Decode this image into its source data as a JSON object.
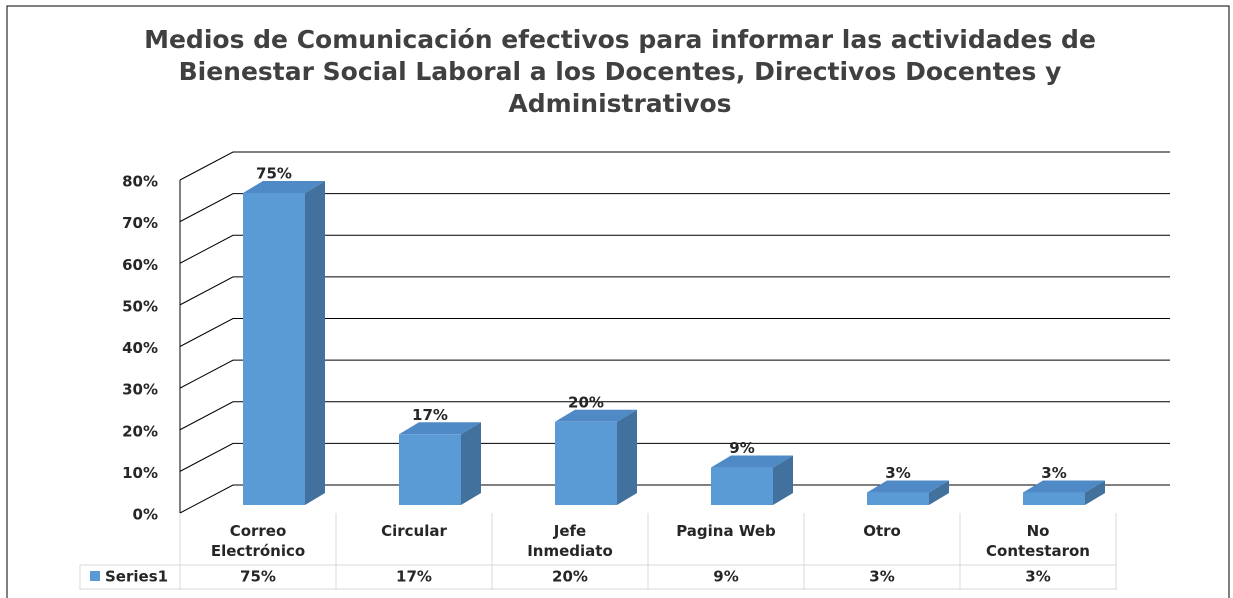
{
  "chart_data": {
    "type": "bar3d",
    "title": "Medios de Comunicación efectivos para informar las actividades de Bienestar Social Laboral a los Docentes, Directivos Docentes y Administrativos",
    "categories": [
      "Correo Electrónico",
      "Circular",
      "Jefe Inmediato",
      "Pagina Web",
      "Otro",
      "No Contestaron"
    ],
    "series": [
      {
        "name": "Series1",
        "color": "#5b9bd5",
        "values": [
          75,
          17,
          20,
          9,
          3,
          3
        ],
        "value_labels": [
          "75%",
          "17%",
          "20%",
          "9%",
          "3%",
          "3%"
        ]
      }
    ],
    "ylim": [
      0,
      80
    ],
    "yticks": [
      {
        "value": 0,
        "label": "0%"
      },
      {
        "value": 10,
        "label": "10%"
      },
      {
        "value": 20,
        "label": "20%"
      },
      {
        "value": 30,
        "label": "30%"
      },
      {
        "value": 40,
        "label": "40%"
      },
      {
        "value": 50,
        "label": "50%"
      },
      {
        "value": 60,
        "label": "60%"
      },
      {
        "value": 70,
        "label": "70%"
      },
      {
        "value": 80,
        "label": "80%"
      }
    ],
    "grid": true,
    "data_table": true
  }
}
